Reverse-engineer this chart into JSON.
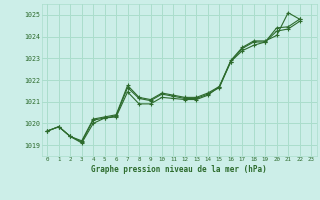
{
  "title": "Graphe pression niveau de la mer (hPa)",
  "bg_color": "#cceee8",
  "grid_color": "#aaddcc",
  "line_color": "#2d6b2d",
  "xlim": [
    -0.5,
    23.5
  ],
  "ylim": [
    1018.5,
    1025.5
  ],
  "yticks": [
    1019,
    1020,
    1021,
    1022,
    1023,
    1024,
    1025
  ],
  "xticks": [
    0,
    1,
    2,
    3,
    4,
    5,
    6,
    7,
    8,
    9,
    10,
    11,
    12,
    13,
    14,
    15,
    16,
    17,
    18,
    19,
    20,
    21,
    22,
    23
  ],
  "line1_x": [
    0,
    1,
    2,
    3,
    4,
    5,
    6,
    7,
    8,
    9,
    10,
    11,
    12,
    13,
    14,
    15,
    16,
    17,
    18,
    19,
    20,
    21,
    22
  ],
  "line1_y": [
    1019.65,
    1019.85,
    1019.4,
    1019.2,
    1020.2,
    1020.3,
    1020.4,
    1021.75,
    1021.2,
    1021.1,
    1021.4,
    1021.3,
    1021.2,
    1021.2,
    1021.4,
    1021.7,
    1022.9,
    1023.5,
    1023.8,
    1023.8,
    1024.05,
    1025.1,
    1024.8
  ],
  "line2_x": [
    0,
    1,
    2,
    3,
    4,
    5,
    6,
    7,
    8,
    9,
    10,
    11,
    12,
    13,
    14,
    15,
    16,
    17,
    18,
    19,
    20,
    21,
    22
  ],
  "line2_y": [
    1019.65,
    1019.85,
    1019.4,
    1019.15,
    1020.15,
    1020.25,
    1020.35,
    1021.65,
    1021.15,
    1021.05,
    1021.35,
    1021.25,
    1021.15,
    1021.15,
    1021.35,
    1021.65,
    1022.85,
    1023.45,
    1023.75,
    1023.75,
    1024.4,
    1024.45,
    1024.8
  ],
  "line3_x": [
    0,
    1,
    2,
    3,
    4,
    5,
    6,
    7,
    8,
    9,
    10,
    11,
    12,
    13,
    14,
    15,
    16,
    17,
    18,
    19,
    20,
    21,
    22
  ],
  "line3_y": [
    1019.65,
    1019.85,
    1019.4,
    1019.1,
    1020.0,
    1020.25,
    1020.3,
    1021.45,
    1020.9,
    1020.9,
    1021.2,
    1021.15,
    1021.1,
    1021.1,
    1021.3,
    1021.7,
    1022.85,
    1023.35,
    1023.6,
    1023.75,
    1024.25,
    1024.35,
    1024.7
  ]
}
